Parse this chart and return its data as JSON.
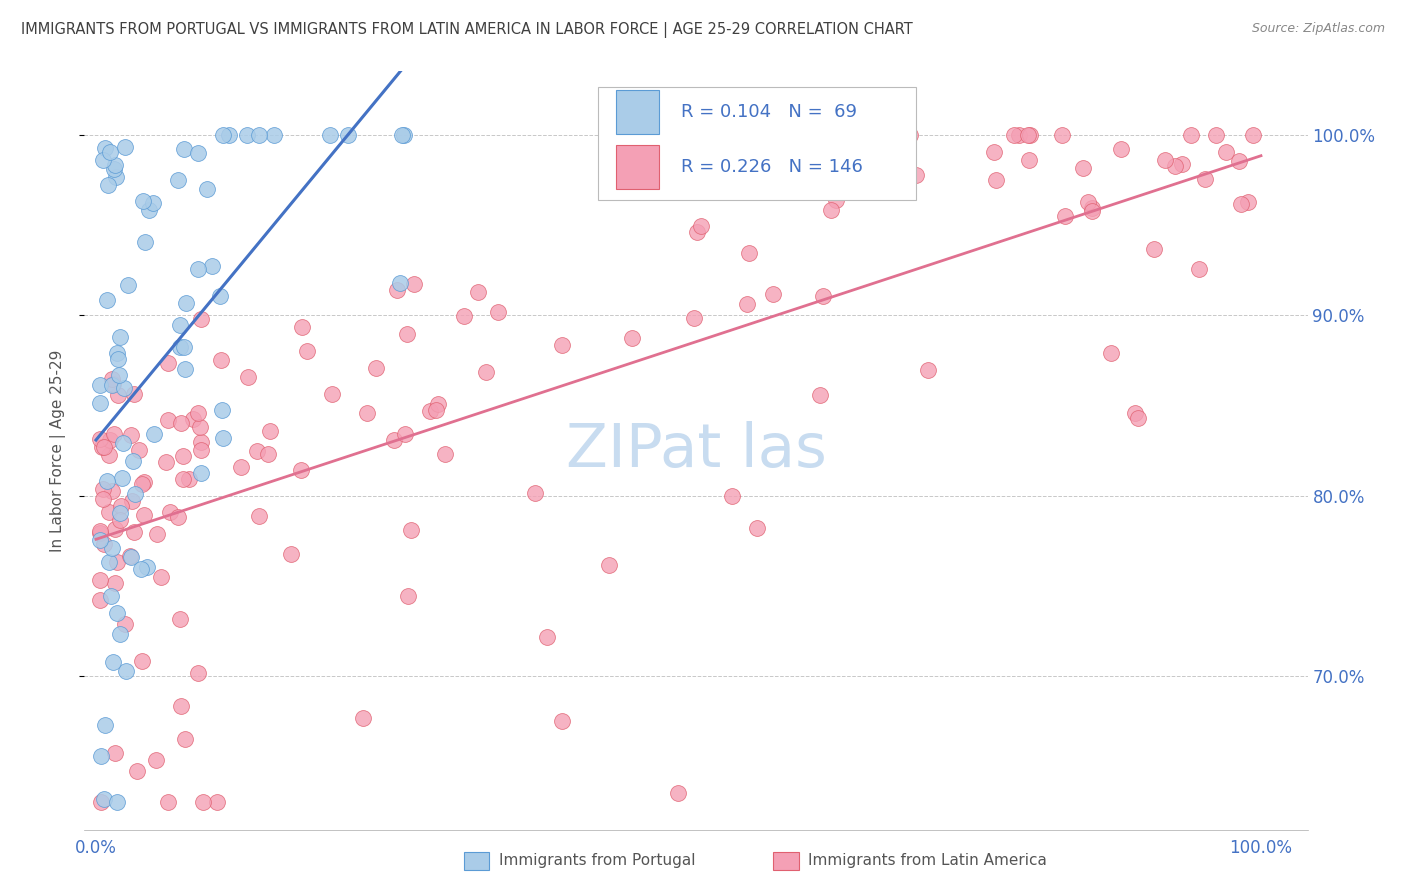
{
  "title": "IMMIGRANTS FROM PORTUGAL VS IMMIGRANTS FROM LATIN AMERICA IN LABOR FORCE | AGE 25-29 CORRELATION CHART",
  "source": "Source: ZipAtlas.com",
  "ylabel": "In Labor Force | Age 25-29",
  "legend_label1": "Immigrants from Portugal",
  "legend_label2": "Immigrants from Latin America",
  "R1": 0.104,
  "N1": 69,
  "R2": 0.226,
  "N2": 146,
  "color_blue_fill": "#AACCE8",
  "color_blue_edge": "#5B9BD5",
  "color_pink_fill": "#F4A0B5",
  "color_pink_edge": "#E06070",
  "color_line_blue_solid": "#4472C4",
  "color_line_blue_dash": "#90C0E0",
  "color_line_pink": "#E07090",
  "color_axis_labels": "#4472C4",
  "color_title": "#404040",
  "color_source": "#888888",
  "color_grid": "#C8C8C8",
  "color_watermark": "#C8DCF0",
  "ymin": 0.615,
  "ymax": 1.035,
  "xmin": -0.01,
  "xmax": 1.04,
  "yticks": [
    0.7,
    0.8,
    0.9,
    1.0
  ],
  "ytick_labels": [
    "70.0%",
    "80.0%",
    "90.0%",
    "100.0%"
  ],
  "xticks": [
    0.0,
    1.0
  ],
  "xtick_labels": [
    "0.0%",
    "100.0%"
  ]
}
